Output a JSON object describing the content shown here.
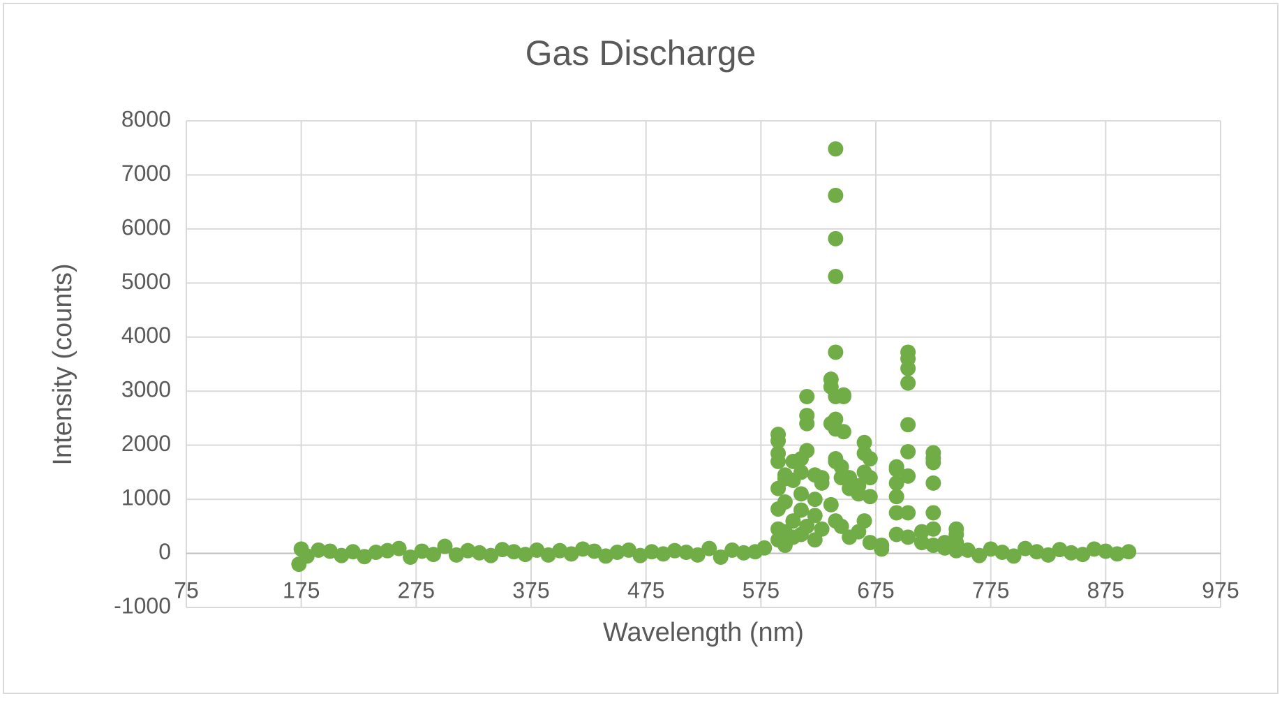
{
  "chart_data": {
    "type": "scatter",
    "title": "Gas Discharge",
    "x_label": "Wavelength (nm)",
    "y_label": "Intensity (counts)",
    "xlim": [
      75,
      975
    ],
    "xticks": [
      75,
      175,
      275,
      375,
      475,
      575,
      675,
      775,
      875,
      975
    ],
    "ylim": [
      -1000,
      8000
    ],
    "yticks": [
      -1000,
      0,
      1000,
      2000,
      3000,
      4000,
      5000,
      6000,
      7000,
      8000
    ],
    "grid": true,
    "series": [
      {
        "color": "#70ad47",
        "x": [
          173,
          175,
          180,
          190,
          200,
          210,
          220,
          230,
          240,
          250,
          260,
          270,
          280,
          290,
          300,
          310,
          320,
          330,
          340,
          350,
          360,
          370,
          380,
          390,
          400,
          410,
          420,
          430,
          440,
          450,
          460,
          470,
          480,
          490,
          500,
          510,
          520,
          530,
          540,
          550,
          560,
          570,
          578,
          590,
          590,
          590,
          590,
          590,
          590,
          590,
          590,
          596,
          596,
          596,
          596,
          596,
          603,
          603,
          603,
          603,
          610,
          610,
          610,
          610,
          610,
          615,
          615,
          615,
          615,
          615,
          622,
          622,
          622,
          622,
          628,
          628,
          628,
          636,
          636,
          636,
          636,
          640,
          640,
          640,
          640,
          640,
          640,
          640,
          640,
          640,
          640,
          640,
          645,
          645,
          645,
          647,
          647,
          647,
          652,
          652,
          652,
          660,
          660,
          660,
          665,
          665,
          665,
          665,
          670,
          670,
          670,
          670,
          680,
          680,
          693,
          693,
          693,
          693,
          693,
          693,
          703,
          703,
          703,
          703,
          703,
          703,
          703,
          703,
          703,
          715,
          715,
          725,
          725,
          725,
          725,
          725,
          725,
          725,
          735,
          735,
          745,
          745,
          745,
          745,
          755,
          765,
          775,
          785,
          795,
          805,
          815,
          825,
          835,
          845,
          855,
          865,
          875,
          885,
          895
        ],
        "values": [
          -200,
          80,
          -50,
          60,
          40,
          -40,
          30,
          -60,
          20,
          50,
          90,
          -70,
          40,
          -20,
          130,
          -30,
          50,
          10,
          -40,
          70,
          30,
          -20,
          60,
          -30,
          50,
          -10,
          80,
          40,
          -50,
          20,
          60,
          -40,
          30,
          -10,
          50,
          20,
          -30,
          90,
          -70,
          60,
          10,
          30,
          100,
          2200,
          2080,
          1850,
          1700,
          1200,
          820,
          450,
          250,
          1450,
          1380,
          950,
          400,
          150,
          1700,
          1350,
          600,
          300,
          1750,
          1500,
          1100,
          800,
          350,
          2900,
          2550,
          2400,
          1900,
          500,
          1450,
          1000,
          700,
          250,
          1400,
          1300,
          450,
          3220,
          3080,
          2400,
          900,
          7480,
          6620,
          5820,
          5120,
          3720,
          2900,
          2480,
          2300,
          1750,
          1700,
          600,
          1600,
          1400,
          500,
          2930,
          2900,
          2250,
          1400,
          1200,
          300,
          1250,
          1100,
          400,
          2050,
          1850,
          1500,
          600,
          1750,
          1400,
          1050,
          200,
          150,
          80,
          1600,
          1550,
          1300,
          1050,
          750,
          350,
          3720,
          3600,
          3420,
          3150,
          2380,
          1880,
          1430,
          750,
          300,
          400,
          200,
          1860,
          1760,
          1680,
          1300,
          750,
          450,
          150,
          200,
          100,
          450,
          350,
          200,
          50,
          60,
          -40,
          80,
          20,
          -50,
          90,
          30,
          -30,
          70,
          10,
          -20,
          80,
          40,
          -10,
          30
        ]
      }
    ]
  }
}
